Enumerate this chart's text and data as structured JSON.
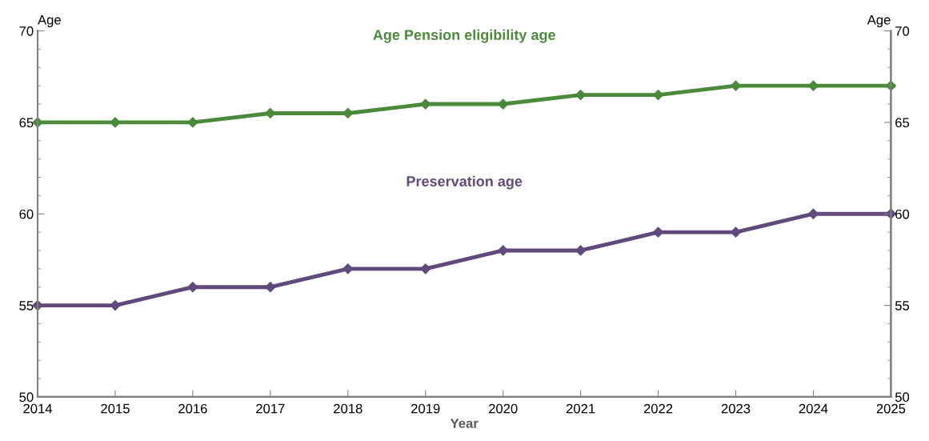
{
  "chart_data": {
    "type": "line",
    "xlabel": "Year",
    "ylabel": "Age",
    "y2label": "Age",
    "x": [
      2014,
      2015,
      2016,
      2017,
      2018,
      2019,
      2020,
      2021,
      2022,
      2023,
      2024,
      2025
    ],
    "series": [
      {
        "name": "Age Pension eligibility age",
        "color": "#4a8a3a",
        "values": [
          65,
          65,
          65,
          65.5,
          65.5,
          66,
          66,
          66.5,
          66.5,
          67,
          67,
          67
        ]
      },
      {
        "name": "Preservation age",
        "color": "#604a7b",
        "values": [
          55,
          55,
          56,
          56,
          57,
          57,
          58,
          58,
          59,
          59,
          60,
          60
        ]
      }
    ],
    "xlim": [
      2014,
      2025
    ],
    "xticks": [
      2014,
      2015,
      2016,
      2017,
      2018,
      2019,
      2020,
      2021,
      2022,
      2023,
      2024,
      2025
    ],
    "ylim": [
      50,
      70
    ],
    "yticks": [
      50,
      55,
      60,
      65,
      70
    ],
    "y2lim": [
      50,
      70
    ],
    "y2ticks": [
      50,
      55,
      60,
      65,
      70
    ],
    "marker": "diamond",
    "line_style": "solid",
    "grid": false,
    "legend": false
  }
}
